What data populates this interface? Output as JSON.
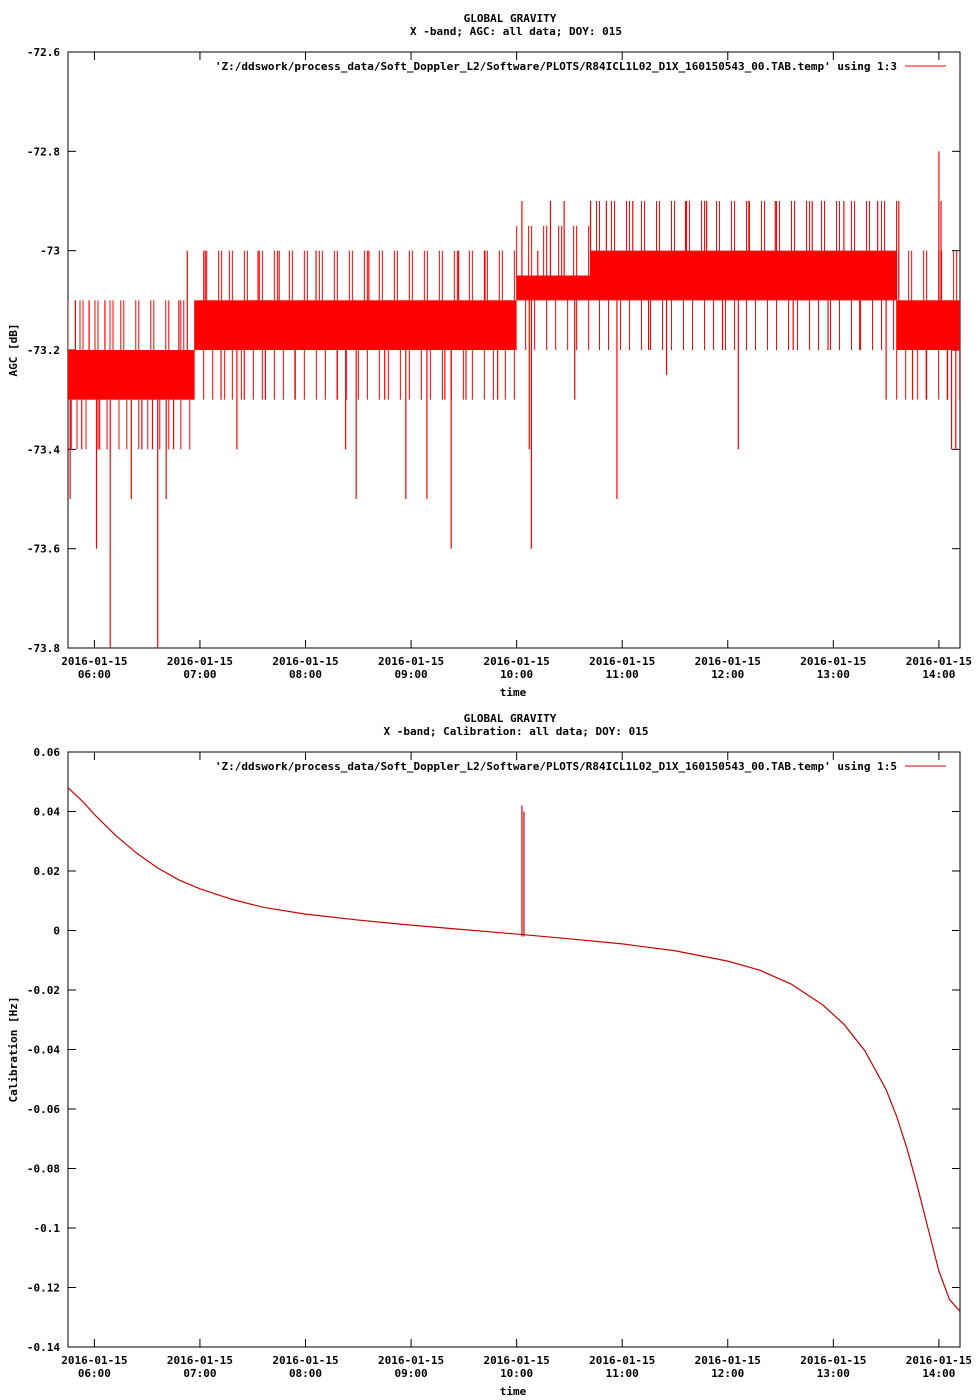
{
  "chart_data": [
    {
      "type": "line",
      "title": "GLOBAL GRAVITY",
      "subtitle": "X -band; AGC: all data; DOY: 015",
      "xlabel": "time",
      "ylabel": "AGC [dB]",
      "ylim": [
        -73.8,
        -72.6
      ],
      "yticks": [
        "-72.6",
        "-72.8",
        "-73",
        "-73.2",
        "-73.4",
        "-73.6",
        "-73.8"
      ],
      "ytick_values": [
        -72.6,
        -72.8,
        -73.0,
        -73.2,
        -73.4,
        -73.6,
        -73.8
      ],
      "xlim_hours": [
        5.75,
        14.2
      ],
      "xtick_hours": [
        6,
        7,
        8,
        9,
        10,
        11,
        12,
        13,
        14
      ],
      "xtick_dates": [
        "2016-01-15",
        "2016-01-15",
        "2016-01-15",
        "2016-01-15",
        "2016-01-15",
        "2016-01-15",
        "2016-01-15",
        "2016-01-15",
        "2016-01-15"
      ],
      "xtick_times": [
        "06:00",
        "07:00",
        "08:00",
        "09:00",
        "10:00",
        "11:00",
        "12:00",
        "13:00",
        "14:00"
      ],
      "legend": "'Z:/ddswork/process_data/Soft_Doppler_L2/Software/PLOTS/R84ICL1L02_D1X_160150543_00.TAB.temp' using 1:3",
      "line_color": "#ff0000",
      "series": [
        {
          "bands": [
            {
              "from_hour": 5.75,
              "to_hour": 6.25,
              "lo": -73.3,
              "hi": -73.2
            },
            {
              "from_hour": 6.25,
              "to_hour": 6.95,
              "lo": -73.3,
              "hi": -73.2
            },
            {
              "from_hour": 6.95,
              "to_hour": 7.25,
              "lo": -73.2,
              "hi": -73.1
            },
            {
              "from_hour": 7.25,
              "to_hour": 10.0,
              "lo": -73.2,
              "hi": -73.1
            },
            {
              "from_hour": 10.0,
              "to_hour": 10.7,
              "lo": -73.1,
              "hi": -73.05
            },
            {
              "from_hour": 10.7,
              "to_hour": 13.6,
              "lo": -73.1,
              "hi": -73.0
            },
            {
              "from_hour": 13.6,
              "to_hour": 14.2,
              "lo": -73.2,
              "hi": -73.1
            }
          ],
          "spikes": [
            [
              5.77,
              -73.5
            ],
            [
              5.78,
              -73.4
            ],
            [
              5.82,
              -73.1
            ],
            [
              5.88,
              -73.4
            ],
            [
              5.95,
              -73.1
            ],
            [
              6.02,
              -73.6
            ],
            [
              6.05,
              -73.4
            ],
            [
              6.1,
              -73.1
            ],
            [
              6.15,
              -73.8
            ],
            [
              6.22,
              -73.3
            ],
            [
              6.35,
              -73.5
            ],
            [
              6.45,
              -73.4
            ],
            [
              6.55,
              -73.4
            ],
            [
              6.6,
              -73.8
            ],
            [
              6.68,
              -73.5
            ],
            [
              6.75,
              -73.4
            ],
            [
              6.8,
              -73.1
            ],
            [
              6.88,
              -73.0
            ],
            [
              7.05,
              -73.0
            ],
            [
              7.2,
              -73.3
            ],
            [
              7.35,
              -73.4
            ],
            [
              7.42,
              -73.3
            ],
            [
              7.55,
              -73.0
            ],
            [
              7.62,
              -73.3
            ],
            [
              7.75,
              -73.0
            ],
            [
              7.9,
              -73.3
            ],
            [
              8.1,
              -73.0
            ],
            [
              8.3,
              -73.3
            ],
            [
              8.38,
              -73.4
            ],
            [
              8.48,
              -73.5
            ],
            [
              8.6,
              -73.0
            ],
            [
              8.75,
              -73.3
            ],
            [
              8.95,
              -73.5
            ],
            [
              9.15,
              -73.5
            ],
            [
              9.32,
              -73.3
            ],
            [
              9.38,
              -73.6
            ],
            [
              9.45,
              -73.0
            ],
            [
              9.52,
              -73.3
            ],
            [
              9.7,
              -73.0
            ],
            [
              9.82,
              -73.3
            ],
            [
              10.05,
              -72.9
            ],
            [
              10.12,
              -73.4
            ],
            [
              10.14,
              -73.6
            ],
            [
              10.2,
              -73.0
            ],
            [
              10.32,
              -72.9
            ],
            [
              10.45,
              -72.9
            ],
            [
              10.55,
              -73.3
            ],
            [
              10.7,
              -72.9
            ],
            [
              10.85,
              -72.9
            ],
            [
              10.95,
              -73.5
            ],
            [
              11.1,
              -72.9
            ],
            [
              11.25,
              -73.2
            ],
            [
              11.42,
              -73.25
            ],
            [
              11.6,
              -72.9
            ],
            [
              11.8,
              -72.9
            ],
            [
              11.95,
              -73.2
            ],
            [
              12.1,
              -73.4
            ],
            [
              12.2,
              -72.9
            ],
            [
              12.45,
              -72.9
            ],
            [
              12.62,
              -73.2
            ],
            [
              12.8,
              -72.9
            ],
            [
              12.95,
              -73.2
            ],
            [
              13.1,
              -72.9
            ],
            [
              13.25,
              -73.2
            ],
            [
              13.42,
              -72.9
            ],
            [
              13.5,
              -73.3
            ],
            [
              13.62,
              -72.9
            ],
            [
              13.75,
              -73.3
            ],
            [
              13.88,
              -73.3
            ],
            [
              14.0,
              -72.8
            ],
            [
              14.02,
              -72.9
            ],
            [
              14.08,
              -73.3
            ],
            [
              14.12,
              -73.4
            ],
            [
              14.16,
              -73.4
            ]
          ]
        }
      ]
    },
    {
      "type": "line",
      "title": "GLOBAL GRAVITY",
      "subtitle": "X -band; Calibration: all data; DOY: 015",
      "xlabel": "time",
      "ylabel": "Calibration [Hz]",
      "ylim": [
        -0.14,
        0.06
      ],
      "yticks": [
        "0.06",
        "0.04",
        "0.02",
        "0",
        "-0.02",
        "-0.04",
        "-0.06",
        "-0.08",
        "-0.1",
        "-0.12",
        "-0.14"
      ],
      "ytick_values": [
        0.06,
        0.04,
        0.02,
        0.0,
        -0.02,
        -0.04,
        -0.06,
        -0.08,
        -0.1,
        -0.12,
        -0.14
      ],
      "xlim_hours": [
        5.75,
        14.2
      ],
      "xtick_hours": [
        6,
        7,
        8,
        9,
        10,
        11,
        12,
        13,
        14
      ],
      "xtick_dates": [
        "2016-01-15",
        "2016-01-15",
        "2016-01-15",
        "2016-01-15",
        "2016-01-15",
        "2016-01-15",
        "2016-01-15",
        "2016-01-15",
        "2016-01-15"
      ],
      "xtick_times": [
        "06:00",
        "07:00",
        "08:00",
        "09:00",
        "10:00",
        "11:00",
        "12:00",
        "13:00",
        "14:00"
      ],
      "legend": "'Z:/ddswork/process_data/Soft_Doppler_L2/Software/PLOTS/R84ICL1L02_D1X_160150543_00.TAB.temp' using 1:5",
      "line_color": "#cc0000",
      "series": [
        {
          "x": [
            5.75,
            5.9,
            6.0,
            6.2,
            6.4,
            6.6,
            6.8,
            7.0,
            7.3,
            7.6,
            8.0,
            8.5,
            9.0,
            9.5,
            10.0,
            10.5,
            11.0,
            11.5,
            12.0,
            12.3,
            12.6,
            12.9,
            13.1,
            13.3,
            13.5,
            13.6,
            13.7,
            13.8,
            13.9,
            14.0,
            14.1,
            14.2
          ],
          "y": [
            0.048,
            0.043,
            0.039,
            0.032,
            0.026,
            0.021,
            0.017,
            0.014,
            0.0105,
            0.0078,
            0.0055,
            0.0035,
            0.0018,
            0.0003,
            -0.0012,
            -0.0028,
            -0.0045,
            -0.0068,
            -0.0103,
            -0.0133,
            -0.018,
            -0.025,
            -0.0315,
            -0.0405,
            -0.0535,
            -0.0625,
            -0.0735,
            -0.0865,
            -0.1005,
            -0.1145,
            -0.124,
            -0.128
          ]
        }
      ],
      "spike": {
        "hour": 10.05,
        "peak": 0.042,
        "base": -0.002
      }
    }
  ]
}
